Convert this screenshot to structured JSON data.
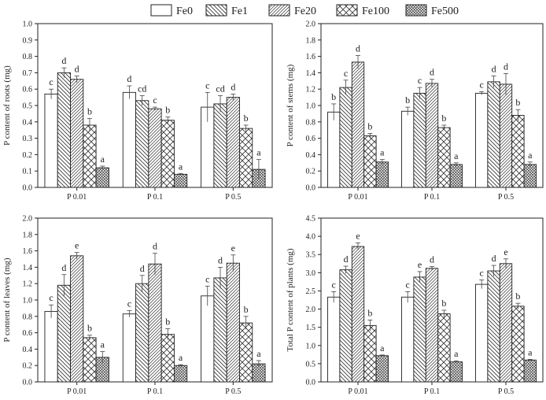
{
  "legend": {
    "placement": "top-center",
    "items": [
      {
        "name": "Fe0",
        "pattern": "empty"
      },
      {
        "name": "Fe1",
        "pattern": "back-diagonal"
      },
      {
        "name": "Fe20",
        "pattern": "forward-diagonal"
      },
      {
        "name": "Fe100",
        "pattern": "diagonal-cross"
      },
      {
        "name": "Fe500",
        "pattern": "dense-cross"
      }
    ]
  },
  "chart_data": [
    {
      "type": "bar",
      "panel": "top-left",
      "ylabel": "P content of roots (mg)",
      "xlabel": "",
      "ylim": [
        0,
        1.0
      ],
      "yticks": [
        "0.0",
        "0.1",
        "0.2",
        "0.3",
        "0.4",
        "0.5",
        "0.6",
        "0.7",
        "0.8",
        "0.9",
        "1.0"
      ],
      "tick_values": [
        0,
        0.1,
        0.2,
        0.3,
        0.4,
        0.5,
        0.6,
        0.7,
        0.8,
        0.9,
        1.0
      ],
      "categories": [
        "P 0.01",
        "P 0.1",
        "P 0.5"
      ],
      "series": [
        {
          "name": "Fe0",
          "values": [
            0.57,
            0.58,
            0.49
          ],
          "errors": [
            0.03,
            0.04,
            0.09
          ],
          "letters": [
            "c",
            "d",
            "c"
          ]
        },
        {
          "name": "Fe1",
          "values": [
            0.7,
            0.53,
            0.51
          ],
          "errors": [
            0.03,
            0.03,
            0.05
          ],
          "letters": [
            "d",
            "cd",
            "cd"
          ]
        },
        {
          "name": "Fe20",
          "values": [
            0.66,
            0.48,
            0.55
          ],
          "errors": [
            0.02,
            0.01,
            0.02
          ],
          "letters": [
            "d",
            "c",
            "d"
          ]
        },
        {
          "name": "Fe100",
          "values": [
            0.38,
            0.41,
            0.36
          ],
          "errors": [
            0.04,
            0.02,
            0.02
          ],
          "letters": [
            "b",
            "b",
            "b"
          ]
        },
        {
          "name": "Fe500",
          "values": [
            0.12,
            0.08,
            0.11
          ],
          "errors": [
            0.01,
            0.005,
            0.06
          ],
          "letters": [
            "a",
            "a",
            "a"
          ]
        }
      ]
    },
    {
      "type": "bar",
      "panel": "top-right",
      "ylabel": "P content of stems (mg)",
      "xlabel": "",
      "ylim": [
        0,
        2.0
      ],
      "yticks": [
        "0.0",
        "0.2",
        "0.4",
        "0.6",
        "0.8",
        "1.0",
        "1.2",
        "1.4",
        "1.6",
        "1.8",
        "2.0"
      ],
      "tick_values": [
        0,
        0.2,
        0.4,
        0.6,
        0.8,
        1.0,
        1.2,
        1.4,
        1.6,
        1.8,
        2.0
      ],
      "categories": [
        "P 0.01",
        "P 0.1",
        "P 0.5"
      ],
      "series": [
        {
          "name": "Fe0",
          "values": [
            0.92,
            0.93,
            1.15
          ],
          "errors": [
            0.1,
            0.05,
            0.02
          ],
          "letters": [
            "b",
            "b",
            "c"
          ]
        },
        {
          "name": "Fe1",
          "values": [
            1.22,
            1.15,
            1.29
          ],
          "errors": [
            0.09,
            0.07,
            0.07
          ],
          "letters": [
            "c",
            "c",
            "d"
          ]
        },
        {
          "name": "Fe20",
          "values": [
            1.53,
            1.27,
            1.26
          ],
          "errors": [
            0.08,
            0.05,
            0.13
          ],
          "letters": [
            "d",
            "d",
            "d"
          ]
        },
        {
          "name": "Fe100",
          "values": [
            0.63,
            0.73,
            0.88
          ],
          "errors": [
            0.03,
            0.03,
            0.07
          ],
          "letters": [
            "b",
            "b",
            "b"
          ]
        },
        {
          "name": "Fe500",
          "values": [
            0.31,
            0.28,
            0.28
          ],
          "errors": [
            0.03,
            0.02,
            0.03
          ],
          "letters": [
            "a",
            "a",
            "a"
          ]
        }
      ]
    },
    {
      "type": "bar",
      "panel": "bottom-left",
      "ylabel": "P content of leaves (mg)",
      "xlabel": "",
      "ylim": [
        0,
        2.0
      ],
      "yticks": [
        "0.0",
        "0.2",
        "0.4",
        "0.6",
        "0.8",
        "1.0",
        "1.2",
        "1.4",
        "1.6",
        "1.8",
        "2.0"
      ],
      "tick_values": [
        0,
        0.2,
        0.4,
        0.6,
        0.8,
        1.0,
        1.2,
        1.4,
        1.6,
        1.8,
        2.0
      ],
      "categories": [
        "P 0.01",
        "P 0.1",
        "P 0.5"
      ],
      "series": [
        {
          "name": "Fe0",
          "values": [
            0.86,
            0.83,
            1.05
          ],
          "errors": [
            0.08,
            0.04,
            0.12
          ],
          "letters": [
            "c",
            "c",
            "c"
          ]
        },
        {
          "name": "Fe1",
          "values": [
            1.18,
            1.2,
            1.27
          ],
          "errors": [
            0.13,
            0.1,
            0.13
          ],
          "letters": [
            "d",
            "d",
            "d"
          ]
        },
        {
          "name": "Fe20",
          "values": [
            1.54,
            1.44,
            1.45
          ],
          "errors": [
            0.04,
            0.13,
            0.1
          ],
          "letters": [
            "e",
            "d",
            "e"
          ]
        },
        {
          "name": "Fe100",
          "values": [
            0.54,
            0.58,
            0.72
          ],
          "errors": [
            0.03,
            0.07,
            0.08
          ],
          "letters": [
            "b",
            "b",
            "b"
          ]
        },
        {
          "name": "Fe500",
          "values": [
            0.3,
            0.2,
            0.22
          ],
          "errors": [
            0.07,
            0.01,
            0.04
          ],
          "letters": [
            "a",
            "a",
            "a"
          ]
        }
      ]
    },
    {
      "type": "bar",
      "panel": "bottom-right",
      "ylabel": "Total P content of plants (mg)",
      "xlabel": "",
      "ylim": [
        0,
        4.5
      ],
      "yticks": [
        "0.0",
        "0.5",
        "1.0",
        "1.5",
        "2.0",
        "2.5",
        "3.0",
        "3.5",
        "4.0",
        "4.5"
      ],
      "tick_values": [
        0,
        0.5,
        1.0,
        1.5,
        2.0,
        2.5,
        3.0,
        3.5,
        4.0,
        4.5
      ],
      "categories": [
        "P 0.01",
        "P 0.1",
        "P 0.5"
      ],
      "series": [
        {
          "name": "Fe0",
          "values": [
            2.33,
            2.33,
            2.68
          ],
          "errors": [
            0.15,
            0.15,
            0.12
          ],
          "letters": [
            "c",
            "c",
            "c"
          ]
        },
        {
          "name": "Fe1",
          "values": [
            3.08,
            2.88,
            3.05
          ],
          "errors": [
            0.1,
            0.15,
            0.15
          ],
          "letters": [
            "d",
            "e",
            "d"
          ]
        },
        {
          "name": "Fe20",
          "values": [
            3.72,
            3.12,
            3.25
          ],
          "errors": [
            0.1,
            0.05,
            0.13
          ],
          "letters": [
            "e",
            "d",
            "e"
          ]
        },
        {
          "name": "Fe100",
          "values": [
            1.55,
            1.87,
            2.08
          ],
          "errors": [
            0.15,
            0.1,
            0.08
          ],
          "letters": [
            "b",
            "b",
            "b"
          ]
        },
        {
          "name": "Fe500",
          "values": [
            0.72,
            0.55,
            0.6
          ],
          "errors": [
            0.02,
            0.03,
            0.02
          ],
          "letters": [
            "a",
            "a",
            "a"
          ]
        }
      ]
    }
  ]
}
